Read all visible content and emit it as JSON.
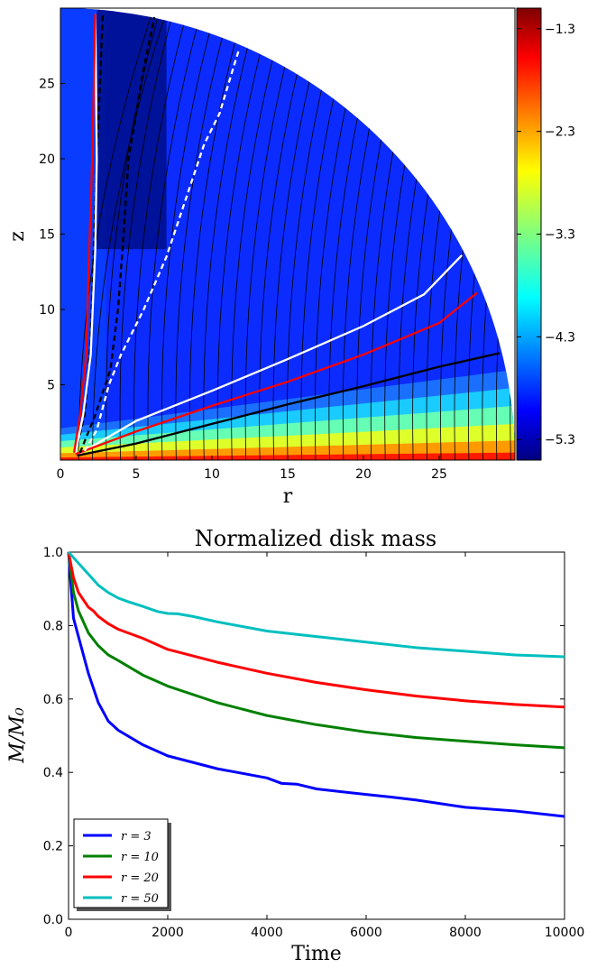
{
  "chart_data": [
    {
      "type": "heatmap",
      "title": "",
      "xlabel": "r",
      "ylabel": "z",
      "xlim": [
        0,
        30
      ],
      "ylim": [
        0,
        30
      ],
      "xticks": [
        0,
        5,
        10,
        15,
        20,
        25
      ],
      "yticks": [
        5,
        10,
        15,
        20,
        25
      ],
      "domain_radius": 30,
      "colorbar": {
        "ticks": [
          -1.3,
          -2.3,
          -3.3,
          -4.3,
          -5.3
        ],
        "tick_labels": [
          "−1.3",
          "−2.3",
          "−3.3",
          "−4.3",
          "−5.3"
        ],
        "range": [
          -5.5,
          -1.1
        ],
        "colormap": "jet"
      },
      "contours": [
        {
          "color": "#ffffff",
          "style": "solid",
          "points": [
            [
              1.2,
              0.4
            ],
            [
              5,
              2.6
            ],
            [
              10,
              4.6
            ],
            [
              15,
              6.7
            ],
            [
              20,
              8.9
            ],
            [
              24,
              11.0
            ],
            [
              26.5,
              13.6
            ]
          ]
        },
        {
          "color": "#ff0000",
          "style": "solid",
          "points": [
            [
              1.0,
              0.4
            ],
            [
              5,
              1.9
            ],
            [
              10,
              3.6
            ],
            [
              15,
              5.2
            ],
            [
              20,
              7.0
            ],
            [
              25,
              9.1
            ],
            [
              27.5,
              11.1
            ]
          ]
        },
        {
          "color": "#000000",
          "style": "solid",
          "points": [
            [
              1.1,
              0.3
            ],
            [
              5,
              1.1
            ],
            [
              10,
              2.4
            ],
            [
              15,
              3.7
            ],
            [
              20,
              4.9
            ],
            [
              25,
              6.2
            ],
            [
              29,
              7.1
            ]
          ]
        },
        {
          "color": "#ffffff",
          "style": "dashed",
          "points": [
            [
              1.6,
              0.6
            ],
            [
              2.4,
              2
            ],
            [
              3.2,
              5
            ],
            [
              4,
              7
            ],
            [
              5.5,
              10
            ],
            [
              7,
              13.5
            ],
            [
              8.5,
              18
            ],
            [
              9.5,
              21
            ],
            [
              10.5,
              23
            ],
            [
              11.4,
              26
            ],
            [
              11.8,
              27.3
            ]
          ]
        },
        {
          "color": "#000000",
          "style": "dashed",
          "points": [
            [
              1.3,
              0.5
            ],
            [
              2.3,
              3
            ],
            [
              3.3,
              6
            ],
            [
              3.8,
              10
            ],
            [
              4.1,
              14
            ],
            [
              4.5,
              20
            ],
            [
              5.5,
              26
            ],
            [
              6.2,
              29.4
            ]
          ]
        },
        {
          "color": "#000000",
          "style": "dashed",
          "points": [
            [
              1.0,
              0.5
            ],
            [
              1.6,
              3
            ],
            [
              2.0,
              8
            ],
            [
              2.2,
              14
            ],
            [
              2.4,
              20
            ],
            [
              2.8,
              29.6
            ]
          ]
        },
        {
          "color": "#ffffff",
          "style": "solid",
          "points": [
            [
              1.0,
              0.5
            ],
            [
              1.5,
              3
            ],
            [
              2.0,
              7
            ],
            [
              2.3,
              14
            ],
            [
              2.4,
              20
            ],
            [
              2.3,
              29.6
            ]
          ]
        },
        {
          "color": "#ff0000",
          "style": "solid",
          "points": [
            [
              0.9,
              0.5
            ],
            [
              1.3,
              3
            ],
            [
              1.7,
              7
            ],
            [
              1.9,
              14
            ],
            [
              2.1,
              20
            ],
            [
              2.3,
              29.6
            ]
          ]
        }
      ]
    },
    {
      "type": "line",
      "title": "Normalized disk mass",
      "xlabel": "Time",
      "ylabel": "M/M₀",
      "xlim": [
        0,
        10000
      ],
      "ylim": [
        0,
        1
      ],
      "xticks": [
        0,
        2000,
        4000,
        6000,
        8000,
        10000
      ],
      "yticks": [
        0.0,
        0.2,
        0.4,
        0.6,
        0.8,
        1.0
      ],
      "ytick_labels": [
        "0.0",
        "0.2",
        "0.4",
        "0.6",
        "0.8",
        "1.0"
      ],
      "legend_position": "lower-left",
      "series": [
        {
          "name": "r = 3",
          "color": "#0000ff",
          "x": [
            0,
            100,
            200,
            400,
            600,
            800,
            1000,
            1500,
            2000,
            3000,
            4000,
            4300,
            4600,
            5000,
            6000,
            6500,
            7000,
            8000,
            9000,
            10000
          ],
          "values": [
            1.0,
            0.82,
            0.77,
            0.67,
            0.59,
            0.54,
            0.515,
            0.475,
            0.445,
            0.41,
            0.385,
            0.37,
            0.368,
            0.355,
            0.34,
            0.333,
            0.325,
            0.305,
            0.295,
            0.28
          ]
        },
        {
          "name": "r = 10",
          "color": "#008000",
          "x": [
            0,
            100,
            200,
            400,
            600,
            800,
            1000,
            1500,
            2000,
            3000,
            4000,
            5000,
            6000,
            7000,
            8000,
            9000,
            10000
          ],
          "values": [
            1.0,
            0.89,
            0.84,
            0.78,
            0.745,
            0.72,
            0.705,
            0.665,
            0.635,
            0.59,
            0.555,
            0.53,
            0.51,
            0.495,
            0.485,
            0.475,
            0.467
          ]
        },
        {
          "name": "r = 20",
          "color": "#ff0000",
          "x": [
            0,
            100,
            200,
            300,
            400,
            500,
            600,
            800,
            1000,
            1500,
            2000,
            3000,
            4000,
            5000,
            6000,
            7000,
            8000,
            9000,
            10000
          ],
          "values": [
            1.0,
            0.93,
            0.89,
            0.87,
            0.85,
            0.84,
            0.825,
            0.805,
            0.79,
            0.765,
            0.735,
            0.7,
            0.67,
            0.645,
            0.625,
            0.608,
            0.595,
            0.585,
            0.578
          ]
        },
        {
          "name": "r = 50",
          "color": "#00bfbf",
          "x": [
            0,
            200,
            400,
            600,
            800,
            1000,
            1200,
            1500,
            1800,
            2000,
            2200,
            2500,
            3000,
            4000,
            5000,
            6000,
            7000,
            8000,
            9000,
            10000
          ],
          "values": [
            1.0,
            0.97,
            0.94,
            0.91,
            0.89,
            0.875,
            0.865,
            0.852,
            0.838,
            0.833,
            0.832,
            0.825,
            0.81,
            0.785,
            0.77,
            0.755,
            0.74,
            0.73,
            0.72,
            0.715
          ]
        }
      ]
    }
  ]
}
